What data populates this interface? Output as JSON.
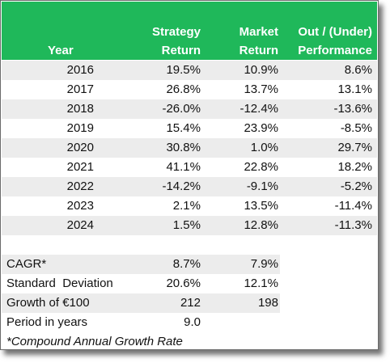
{
  "header": {
    "year": "Year",
    "strategy_line1": "Strategy",
    "strategy_line2": "Return",
    "market_line1": "Market",
    "market_line2": "Return",
    "out_line1": "Out / (Under)",
    "out_line2": "Performance"
  },
  "rows": [
    {
      "year": "2016",
      "strategy": "19.5%",
      "market": "10.9%",
      "out": "8.6%"
    },
    {
      "year": "2017",
      "strategy": "26.8%",
      "market": "13.7%",
      "out": "13.1%"
    },
    {
      "year": "2018",
      "strategy": "-26.0%",
      "market": "-12.4%",
      "out": "-13.6%"
    },
    {
      "year": "2019",
      "strategy": "15.4%",
      "market": "23.9%",
      "out": "-8.5%"
    },
    {
      "year": "2020",
      "strategy": "30.8%",
      "market": "1.0%",
      "out": "29.7%"
    },
    {
      "year": "2021",
      "strategy": "41.1%",
      "market": "22.8%",
      "out": "18.2%"
    },
    {
      "year": "2022",
      "strategy": "-14.2%",
      "market": "-9.1%",
      "out": "-5.2%"
    },
    {
      "year": "2023",
      "strategy": "2.1%",
      "market": "13.5%",
      "out": "-11.4%"
    },
    {
      "year": "2024",
      "strategy": "1.5%",
      "market": "12.8%",
      "out": "-11.3%"
    }
  ],
  "summary": [
    {
      "label": "CAGR*",
      "strategy": "8.7%",
      "market": "7.9%"
    },
    {
      "label": "Standard  Deviation",
      "strategy": "20.6%",
      "market": "12.1%"
    },
    {
      "label": "Growth of €100",
      "strategy": "212",
      "market": "198"
    },
    {
      "label": "Period in years",
      "strategy": "9.0",
      "market": ""
    }
  ],
  "footnote": "*Compound Annual Growth Rate",
  "colors": {
    "header_bg": "#1fb85a",
    "stripe": "#ececec"
  }
}
